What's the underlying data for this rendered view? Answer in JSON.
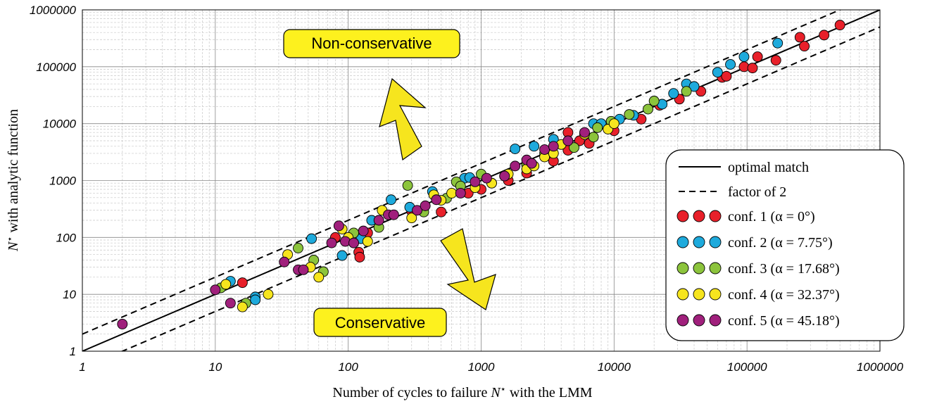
{
  "chart_data": {
    "type": "scatter",
    "xlabel_parts": [
      "Number of cycles to failure ",
      "N",
      "⋆",
      " with the LMM"
    ],
    "ylabel_parts": [
      "N",
      "⋆",
      " with analytic function"
    ],
    "x_scale": "log",
    "y_scale": "log",
    "xlim": [
      1,
      1000000
    ],
    "ylim": [
      1,
      1000000
    ],
    "x_ticks": [
      "1",
      "10",
      "100",
      "1000",
      "10000",
      "100000",
      "1000000"
    ],
    "y_ticks": [
      "1",
      "10",
      "100",
      "1000",
      "10000",
      "100000",
      "1000000"
    ],
    "grid": true,
    "legend_position": "right",
    "annotations": [
      {
        "text": "Non-conservative",
        "direction": "up"
      },
      {
        "text": "Conservative",
        "direction": "down"
      }
    ],
    "reference_lines": [
      {
        "name": "optimal match",
        "style": "solid",
        "factor": 1
      },
      {
        "name": "factor of 2",
        "style": "dashed",
        "factor": 2
      }
    ],
    "series": [
      {
        "name": "conf. 1 (α = 0°)",
        "color": "#e8202a",
        "points": [
          [
            16,
            16
          ],
          [
            80,
            100
          ],
          [
            120,
            55
          ],
          [
            122,
            45
          ],
          [
            140,
            120
          ],
          [
            300,
            290
          ],
          [
            500,
            280
          ],
          [
            800,
            600
          ],
          [
            1000,
            700
          ],
          [
            1600,
            1000
          ],
          [
            2200,
            1350
          ],
          [
            3500,
            2200
          ],
          [
            4500,
            7000
          ],
          [
            4500,
            3400
          ],
          [
            5500,
            5000
          ],
          [
            6500,
            4500
          ],
          [
            10000,
            7500
          ],
          [
            16000,
            12000
          ],
          [
            22000,
            21000
          ],
          [
            31000,
            27000
          ],
          [
            45000,
            37000
          ],
          [
            65000,
            65000
          ],
          [
            70000,
            68000
          ],
          [
            95000,
            100000
          ],
          [
            110000,
            95000
          ],
          [
            120000,
            150000
          ],
          [
            165000,
            130000
          ],
          [
            250000,
            330000
          ],
          [
            270000,
            230000
          ],
          [
            380000,
            360000
          ],
          [
            500000,
            540000
          ]
        ]
      },
      {
        "name": "conf. 2 (α = 7.75°)",
        "color": "#1eaadc",
        "points": [
          [
            13,
            17
          ],
          [
            20,
            9
          ],
          [
            20,
            8
          ],
          [
            53,
            95
          ],
          [
            90,
            48
          ],
          [
            125,
            95
          ],
          [
            150,
            200
          ],
          [
            210,
            460
          ],
          [
            290,
            340
          ],
          [
            430,
            640
          ],
          [
            750,
            1100
          ],
          [
            820,
            1130
          ],
          [
            1200,
            900
          ],
          [
            1800,
            3600
          ],
          [
            2500,
            4000
          ],
          [
            3500,
            5300
          ],
          [
            7000,
            10000
          ],
          [
            8000,
            10000
          ],
          [
            11000,
            12000
          ],
          [
            14000,
            14000
          ],
          [
            23000,
            22000
          ],
          [
            28000,
            34000
          ],
          [
            35000,
            50000
          ],
          [
            40000,
            45000
          ],
          [
            60000,
            80000
          ],
          [
            75000,
            110000
          ],
          [
            95000,
            150000
          ],
          [
            170000,
            260000
          ]
        ]
      },
      {
        "name": "conf. 3 (α = 17.68°)",
        "color": "#8cc43c",
        "points": [
          [
            11,
            13
          ],
          [
            17,
            7
          ],
          [
            42,
            65
          ],
          [
            55,
            40
          ],
          [
            65,
            25
          ],
          [
            100,
            90
          ],
          [
            110,
            120
          ],
          [
            170,
            150
          ],
          [
            280,
            820
          ],
          [
            370,
            280
          ],
          [
            550,
            490
          ],
          [
            650,
            950
          ],
          [
            700,
            800
          ],
          [
            1000,
            1300
          ],
          [
            1500,
            1200
          ],
          [
            2200,
            1900
          ],
          [
            3000,
            3000
          ],
          [
            5000,
            3800
          ],
          [
            7000,
            5800
          ],
          [
            7500,
            8500
          ],
          [
            9500,
            11000
          ],
          [
            13000,
            14500
          ],
          [
            18000,
            18000
          ],
          [
            20000,
            25000
          ],
          [
            35000,
            37000
          ]
        ]
      },
      {
        "name": "conf. 4 (α = 32.37°)",
        "color": "#f6e51e",
        "points": [
          [
            12,
            15
          ],
          [
            16,
            6
          ],
          [
            25,
            10
          ],
          [
            35,
            50
          ],
          [
            52,
            30
          ],
          [
            60,
            20
          ],
          [
            90,
            140
          ],
          [
            100,
            100
          ],
          [
            110,
            80
          ],
          [
            140,
            85
          ],
          [
            180,
            300
          ],
          [
            300,
            220
          ],
          [
            440,
            560
          ],
          [
            500,
            450
          ],
          [
            600,
            600
          ],
          [
            900,
            750
          ],
          [
            1200,
            900
          ],
          [
            1600,
            1300
          ],
          [
            2200,
            1600
          ],
          [
            2500,
            1800
          ],
          [
            3000,
            2600
          ],
          [
            3500,
            3000
          ],
          [
            4000,
            4300
          ],
          [
            6000,
            6500
          ],
          [
            9000,
            8000
          ],
          [
            10000,
            10000
          ]
        ]
      },
      {
        "name": "conf. 5 (α = 45.18°)",
        "color": "#a0207c",
        "points": [
          [
            2,
            3
          ],
          [
            10,
            12
          ],
          [
            13,
            7
          ],
          [
            33,
            37
          ],
          [
            42,
            27
          ],
          [
            46,
            27
          ],
          [
            75,
            80
          ],
          [
            85,
            160
          ],
          [
            95,
            85
          ],
          [
            110,
            80
          ],
          [
            130,
            130
          ],
          [
            170,
            200
          ],
          [
            200,
            250
          ],
          [
            220,
            250
          ],
          [
            330,
            300
          ],
          [
            380,
            360
          ],
          [
            460,
            460
          ],
          [
            700,
            600
          ],
          [
            900,
            950
          ],
          [
            1100,
            1100
          ],
          [
            1500,
            1200
          ],
          [
            1800,
            1800
          ],
          [
            2200,
            2300
          ],
          [
            2400,
            2000
          ],
          [
            3000,
            3500
          ],
          [
            3500,
            4000
          ],
          [
            4500,
            5000
          ],
          [
            6000,
            7000
          ]
        ]
      }
    ]
  }
}
